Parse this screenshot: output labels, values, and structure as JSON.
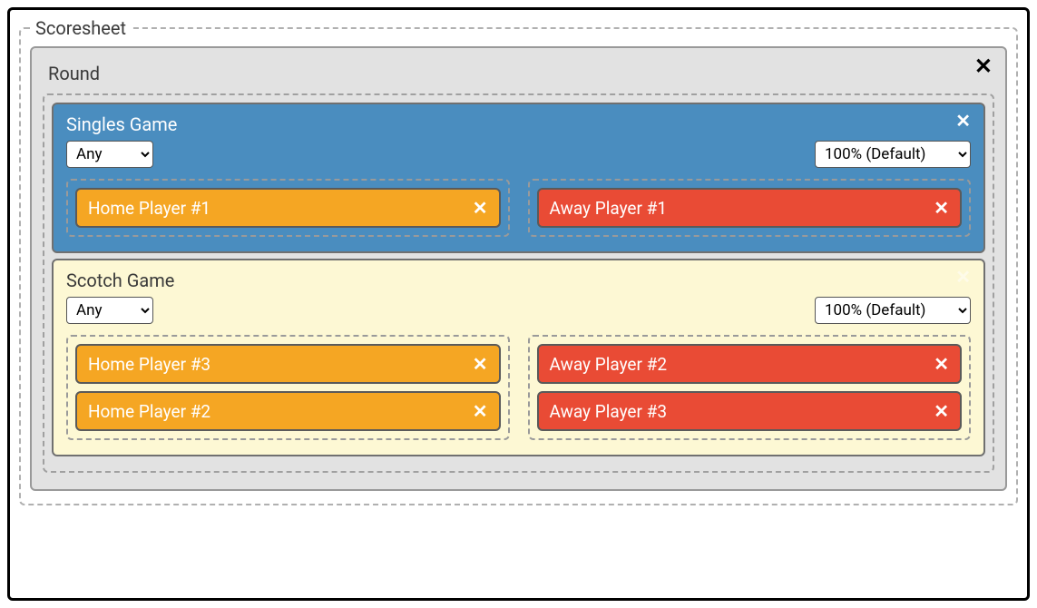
{
  "scoresheet": {
    "legend": "Scoresheet",
    "round": {
      "label": "Round",
      "games": [
        {
          "kind": "singles",
          "title": "Singles Game",
          "left_select": {
            "value": "Any",
            "options": [
              "Any"
            ]
          },
          "right_select": {
            "value": "100% (Default)",
            "options": [
              "100% (Default)"
            ]
          },
          "home": [
            "Home Player #1"
          ],
          "away": [
            "Away Player #1"
          ]
        },
        {
          "kind": "scotch",
          "title": "Scotch Game",
          "left_select": {
            "value": "Any",
            "options": [
              "Any"
            ]
          },
          "right_select": {
            "value": "100% (Default)",
            "options": [
              "100% (Default)"
            ]
          },
          "home": [
            "Home Player #3",
            "Home Player #2"
          ],
          "away": [
            "Away Player #2",
            "Away Player #3"
          ]
        }
      ]
    }
  },
  "colors": {
    "singles_bg": "#4a8dbf",
    "scotch_bg": "#fdf8d4",
    "home_chip": "#f5a623",
    "away_chip": "#e94b35",
    "round_bg": "#e2e2e2",
    "dash_border": "#a0a0a0"
  }
}
